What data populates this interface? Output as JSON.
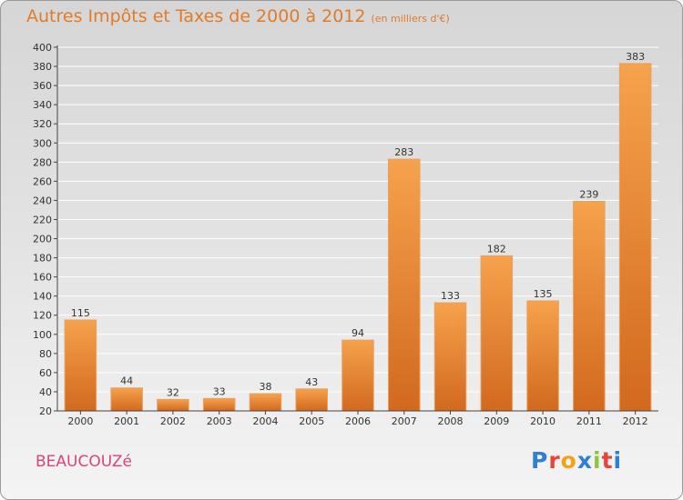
{
  "header": {
    "title": "Autres Impôts et Taxes de 2000 à 2012",
    "subtitle": "(en milliers d'€)"
  },
  "footer": {
    "town": "BEAUCOUZé",
    "brand_letters": [
      "P",
      "r",
      "o",
      "x",
      "i",
      "t",
      "i"
    ],
    "brand_colors": [
      "#2f7fd6",
      "#e8443a",
      "#f0a21b",
      "#2f7fd6",
      "#8cc63f",
      "#e8443a",
      "#2f7fd6"
    ]
  },
  "colors": {
    "bar_light": "#f6a24c",
    "bar_dark": "#d2691e",
    "bar_stroke": "#e8a060",
    "title": "#e07b2a",
    "town": "#d9447a"
  },
  "chart_data": {
    "type": "bar",
    "title": "Autres Impôts et Taxes de 2000 à 2012",
    "subtitle": "(en milliers d'€)",
    "categories": [
      "2000",
      "2001",
      "2002",
      "2003",
      "2004",
      "2005",
      "2006",
      "2007",
      "2008",
      "2009",
      "2010",
      "2011",
      "2012"
    ],
    "values": [
      115,
      44,
      32,
      33,
      38,
      43,
      94,
      283,
      133,
      182,
      135,
      239,
      383
    ],
    "data_labels": [
      "115",
      "44",
      "32",
      "33",
      "38",
      "43",
      "94",
      "283",
      "133",
      "182",
      "135",
      "239",
      "383"
    ],
    "ylim": [
      20,
      400
    ],
    "yticks": [
      20,
      40,
      60,
      80,
      100,
      120,
      140,
      160,
      180,
      200,
      220,
      240,
      260,
      280,
      300,
      320,
      340,
      360,
      380,
      400
    ],
    "grid": true,
    "legend": "none"
  }
}
